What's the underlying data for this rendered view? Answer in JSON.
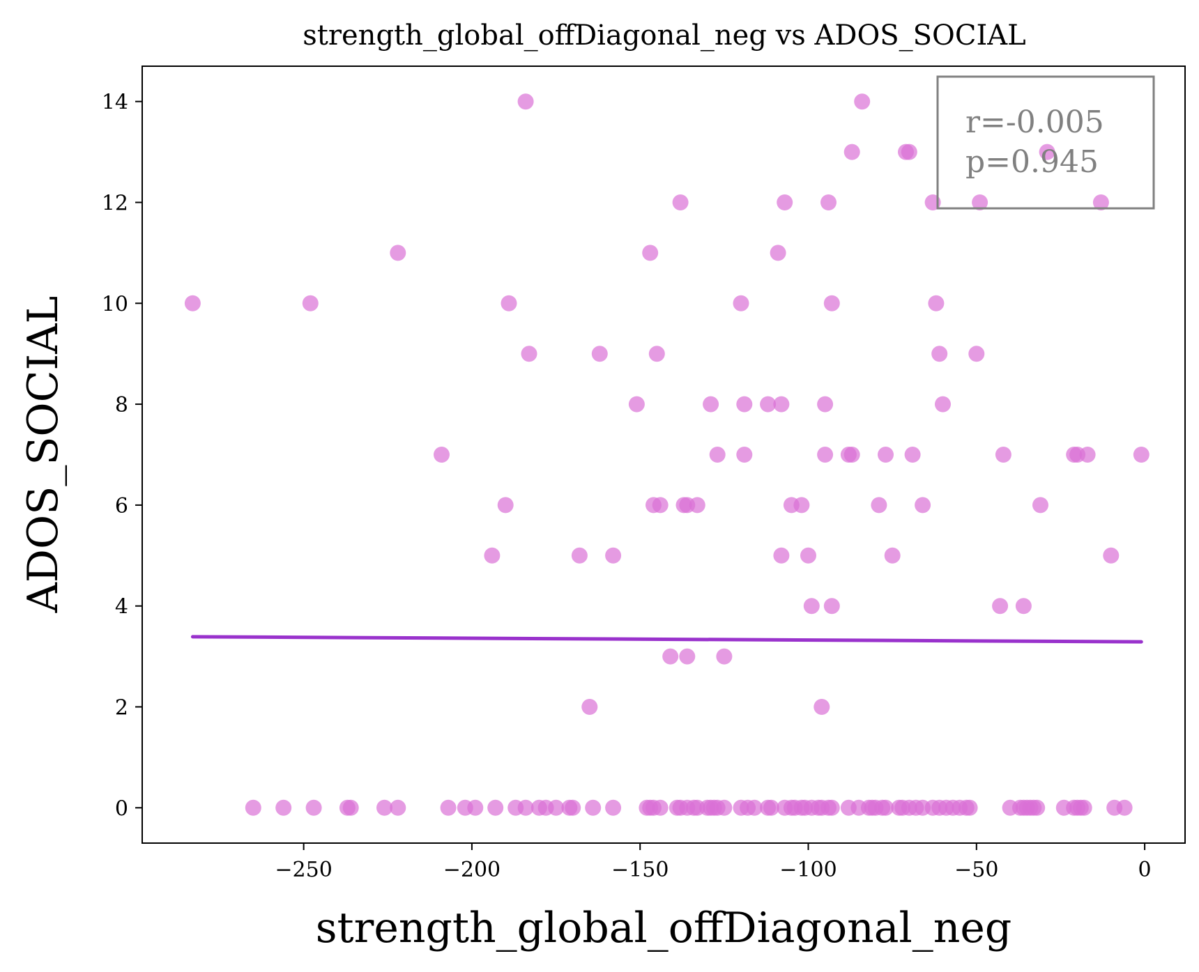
{
  "chart_data": {
    "type": "scatter",
    "title": "strength_global_offDiagonal_neg vs ADOS_SOCIAL",
    "xlabel": "strength_global_offDiagonal_neg",
    "ylabel": "ADOS_SOCIAL",
    "xlim": [
      -298,
      12
    ],
    "ylim": [
      -0.7,
      14.7
    ],
    "xticks": [
      -250,
      -200,
      -150,
      -100,
      -50,
      0
    ],
    "yticks": [
      0,
      2,
      4,
      6,
      8,
      10,
      12,
      14
    ],
    "grid": false,
    "colors": {
      "points": "#da70d6",
      "trendline": "#9932cc",
      "annotation_text": "#808080",
      "annotation_border": "#808080"
    },
    "annotation": {
      "line1": "r=-0.005",
      "line2": "p=0.945",
      "placement": "top-right"
    },
    "trendline": {
      "x": [
        -283,
        -1
      ],
      "y": [
        3.39,
        3.29
      ]
    },
    "points": [
      [
        -283,
        10
      ],
      [
        -248,
        10
      ],
      [
        -222,
        11
      ],
      [
        -209,
        7
      ],
      [
        -194,
        5
      ],
      [
        -190,
        6
      ],
      [
        -189,
        10
      ],
      [
        -184,
        14
      ],
      [
        -183,
        9
      ],
      [
        -168,
        5
      ],
      [
        -165,
        2
      ],
      [
        -162,
        9
      ],
      [
        -158,
        5
      ],
      [
        -151,
        8
      ],
      [
        -147,
        11
      ],
      [
        -146,
        6
      ],
      [
        -145,
        9
      ],
      [
        -144,
        6
      ],
      [
        -141,
        3
      ],
      [
        -138,
        12
      ],
      [
        -137,
        6
      ],
      [
        -136,
        3
      ],
      [
        -136,
        6
      ],
      [
        -133,
        6
      ],
      [
        -129,
        8
      ],
      [
        -127,
        7
      ],
      [
        -125,
        3
      ],
      [
        -120,
        10
      ],
      [
        -119,
        8
      ],
      [
        -119,
        7
      ],
      [
        -112,
        8
      ],
      [
        -109,
        11
      ],
      [
        -108,
        8
      ],
      [
        -108,
        5
      ],
      [
        -107,
        12
      ],
      [
        -105,
        6
      ],
      [
        -102,
        6
      ],
      [
        -100,
        5
      ],
      [
        -99,
        4
      ],
      [
        -96,
        2
      ],
      [
        -95,
        7
      ],
      [
        -95,
        8
      ],
      [
        -94,
        12
      ],
      [
        -93,
        10
      ],
      [
        -93,
        4
      ],
      [
        -88,
        7
      ],
      [
        -87,
        7
      ],
      [
        -87,
        13
      ],
      [
        -84,
        14
      ],
      [
        -79,
        6
      ],
      [
        -77,
        7
      ],
      [
        -75,
        5
      ],
      [
        -71,
        13
      ],
      [
        -70,
        13
      ],
      [
        -69,
        7
      ],
      [
        -66,
        6
      ],
      [
        -63,
        12
      ],
      [
        -62,
        10
      ],
      [
        -61,
        9
      ],
      [
        -60,
        8
      ],
      [
        -50,
        9
      ],
      [
        -49,
        12
      ],
      [
        -43,
        4
      ],
      [
        -42,
        7
      ],
      [
        -36,
        4
      ],
      [
        -31,
        6
      ],
      [
        -29,
        13
      ],
      [
        -21,
        7
      ],
      [
        -20,
        7
      ],
      [
        -17,
        7
      ],
      [
        -13,
        12
      ],
      [
        -10,
        5
      ],
      [
        -1,
        7
      ],
      [
        -265,
        0
      ],
      [
        -256,
        0
      ],
      [
        -247,
        0
      ],
      [
        -237,
        0
      ],
      [
        -236,
        0
      ],
      [
        -226,
        0
      ],
      [
        -222,
        0
      ],
      [
        -207,
        0
      ],
      [
        -202,
        0
      ],
      [
        -199,
        0
      ],
      [
        -193,
        0
      ],
      [
        -187,
        0
      ],
      [
        -184,
        0
      ],
      [
        -180,
        0
      ],
      [
        -178,
        0
      ],
      [
        -175,
        0
      ],
      [
        -171,
        0
      ],
      [
        -170,
        0
      ],
      [
        -164,
        0
      ],
      [
        -158,
        0
      ],
      [
        -148,
        0
      ],
      [
        -147,
        0
      ],
      [
        -146,
        0
      ],
      [
        -144,
        0
      ],
      [
        -139,
        0
      ],
      [
        -138,
        0
      ],
      [
        -136,
        0
      ],
      [
        -134,
        0
      ],
      [
        -133,
        0
      ],
      [
        -130,
        0
      ],
      [
        -129,
        0
      ],
      [
        -128,
        0
      ],
      [
        -127,
        0
      ],
      [
        -125,
        0
      ],
      [
        -120,
        0
      ],
      [
        -118,
        0
      ],
      [
        -116,
        0
      ],
      [
        -112,
        0
      ],
      [
        -111,
        0
      ],
      [
        -107,
        0
      ],
      [
        -105,
        0
      ],
      [
        -104,
        0
      ],
      [
        -102,
        0
      ],
      [
        -101,
        0
      ],
      [
        -99,
        0
      ],
      [
        -97,
        0
      ],
      [
        -96,
        0
      ],
      [
        -94,
        0
      ],
      [
        -93,
        0
      ],
      [
        -88,
        0
      ],
      [
        -85,
        0
      ],
      [
        -82,
        0
      ],
      [
        -81,
        0
      ],
      [
        -80,
        0
      ],
      [
        -78,
        0
      ],
      [
        -77,
        0
      ],
      [
        -73,
        0
      ],
      [
        -72,
        0
      ],
      [
        -70,
        0
      ],
      [
        -68,
        0
      ],
      [
        -66,
        0
      ],
      [
        -63,
        0
      ],
      [
        -61,
        0
      ],
      [
        -59,
        0
      ],
      [
        -57,
        0
      ],
      [
        -55,
        0
      ],
      [
        -53,
        0
      ],
      [
        -52,
        0
      ],
      [
        -40,
        0
      ],
      [
        -37,
        0
      ],
      [
        -36,
        0
      ],
      [
        -35,
        0
      ],
      [
        -34,
        0
      ],
      [
        -33,
        0
      ],
      [
        -32,
        0
      ],
      [
        -24,
        0
      ],
      [
        -21,
        0
      ],
      [
        -20,
        0
      ],
      [
        -19,
        0
      ],
      [
        -18,
        0
      ],
      [
        -9,
        0
      ],
      [
        -6,
        0
      ]
    ]
  }
}
